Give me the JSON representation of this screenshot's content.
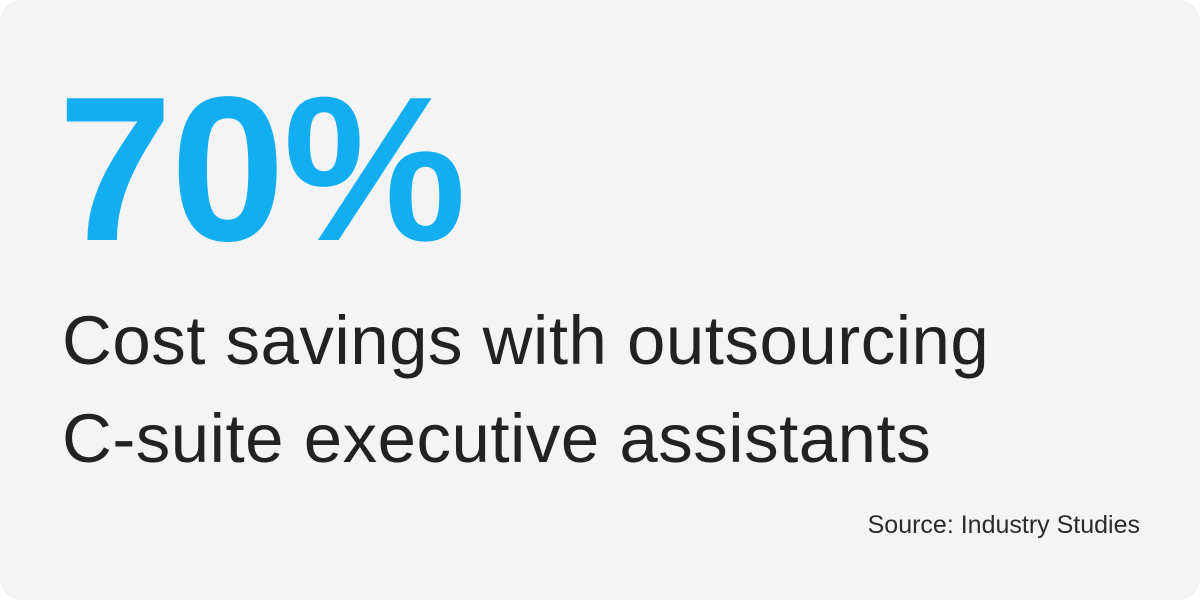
{
  "stat": {
    "value": "70%",
    "color": "#13aef2"
  },
  "headline": {
    "line1": "Cost savings with outsourcing",
    "line2": "C-suite executive assistants",
    "color": "#222222"
  },
  "source": {
    "text": "Source: Industry Studies",
    "color": "#2a2a2a"
  },
  "background_color": "#f4f4f4"
}
